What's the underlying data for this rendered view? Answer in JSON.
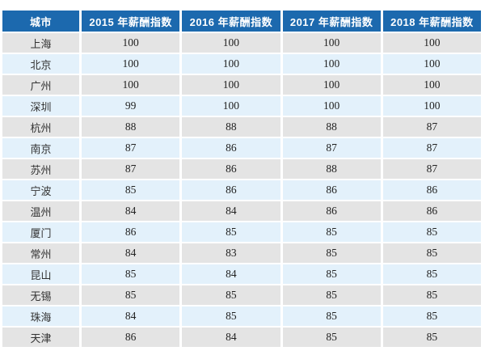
{
  "colors": {
    "header_bg": "#1c69ae",
    "header_text": "#ffffff",
    "row_stripe_gray": "#e4e4e4",
    "row_stripe_blue": "#e3f1fb",
    "body_text": "#333333"
  },
  "table": {
    "columns": [
      "城市",
      "2015 年薪酬指数",
      "2016 年薪酬指数",
      "2017 年薪酬指数",
      "2018 年薪酬指数"
    ],
    "rows": [
      {
        "city": "上海",
        "values": [
          100,
          100,
          100,
          100
        ]
      },
      {
        "city": "北京",
        "values": [
          100,
          100,
          100,
          100
        ]
      },
      {
        "city": "广州",
        "values": [
          100,
          100,
          100,
          100
        ]
      },
      {
        "city": "深圳",
        "values": [
          99,
          100,
          100,
          100
        ]
      },
      {
        "city": "杭州",
        "values": [
          88,
          88,
          88,
          87
        ]
      },
      {
        "city": "南京",
        "values": [
          87,
          86,
          87,
          87
        ]
      },
      {
        "city": "苏州",
        "values": [
          87,
          86,
          88,
          87
        ]
      },
      {
        "city": "宁波",
        "values": [
          85,
          86,
          86,
          86
        ]
      },
      {
        "city": "温州",
        "values": [
          84,
          84,
          86,
          86
        ]
      },
      {
        "city": "厦门",
        "values": [
          86,
          85,
          85,
          85
        ]
      },
      {
        "city": "常州",
        "values": [
          84,
          83,
          85,
          85
        ]
      },
      {
        "city": "昆山",
        "values": [
          85,
          84,
          85,
          85
        ]
      },
      {
        "city": "无锡",
        "values": [
          85,
          85,
          85,
          85
        ]
      },
      {
        "city": "珠海",
        "values": [
          84,
          85,
          85,
          85
        ]
      },
      {
        "city": "天津",
        "values": [
          86,
          84,
          85,
          85
        ]
      }
    ]
  },
  "chart_data": {
    "type": "table",
    "title": "",
    "categories": [
      "上海",
      "北京",
      "广州",
      "深圳",
      "杭州",
      "南京",
      "苏州",
      "宁波",
      "温州",
      "厦门",
      "常州",
      "昆山",
      "无锡",
      "珠海",
      "天津"
    ],
    "series": [
      {
        "name": "2015 年薪酬指数",
        "values": [
          100,
          100,
          100,
          99,
          88,
          87,
          87,
          85,
          84,
          86,
          84,
          85,
          85,
          84,
          86
        ]
      },
      {
        "name": "2016 年薪酬指数",
        "values": [
          100,
          100,
          100,
          100,
          88,
          86,
          86,
          86,
          84,
          85,
          83,
          84,
          85,
          85,
          84
        ]
      },
      {
        "name": "2017 年薪酬指数",
        "values": [
          100,
          100,
          100,
          100,
          88,
          87,
          88,
          86,
          86,
          85,
          85,
          85,
          85,
          85,
          85
        ]
      },
      {
        "name": "2018 年薪酬指数",
        "values": [
          100,
          100,
          100,
          100,
          87,
          87,
          87,
          86,
          86,
          85,
          85,
          85,
          85,
          85,
          85
        ]
      }
    ],
    "xlabel": "城市",
    "ylabel": "薪酬指数"
  }
}
